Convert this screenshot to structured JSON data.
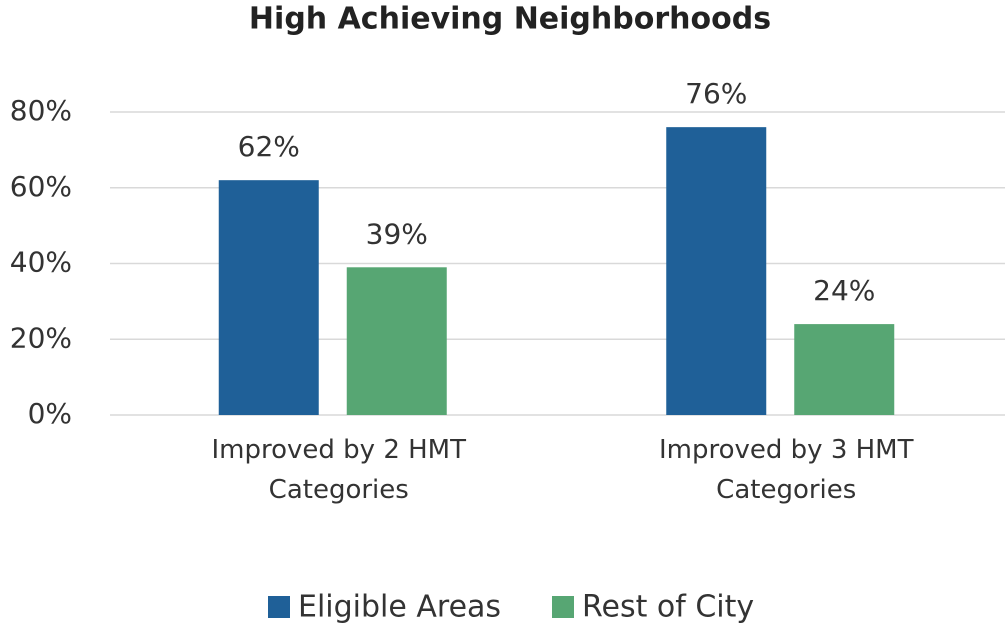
{
  "chart_data": {
    "type": "bar",
    "title": "High Achieving Neighborhoods",
    "categories": [
      "Improved by 2 HMT Categories",
      "Improved by 3 HMT Categories"
    ],
    "series": [
      {
        "name": "Eligible Areas",
        "color": "#1f6098",
        "values": [
          62,
          76
        ],
        "value_labels": [
          "62%",
          "76%"
        ]
      },
      {
        "name": "Rest of City",
        "color": "#57a673",
        "values": [
          39,
          24
        ],
        "value_labels": [
          "39%",
          "24%"
        ]
      }
    ],
    "ylim": [
      0,
      80
    ],
    "yticks": [
      {
        "value": 0,
        "label": "0%"
      },
      {
        "value": 20,
        "label": "20%"
      },
      {
        "value": 40,
        "label": "40%"
      },
      {
        "value": 60,
        "label": "60%"
      },
      {
        "value": 80,
        "label": "80%"
      }
    ],
    "grid": true,
    "legend": "bottom"
  }
}
